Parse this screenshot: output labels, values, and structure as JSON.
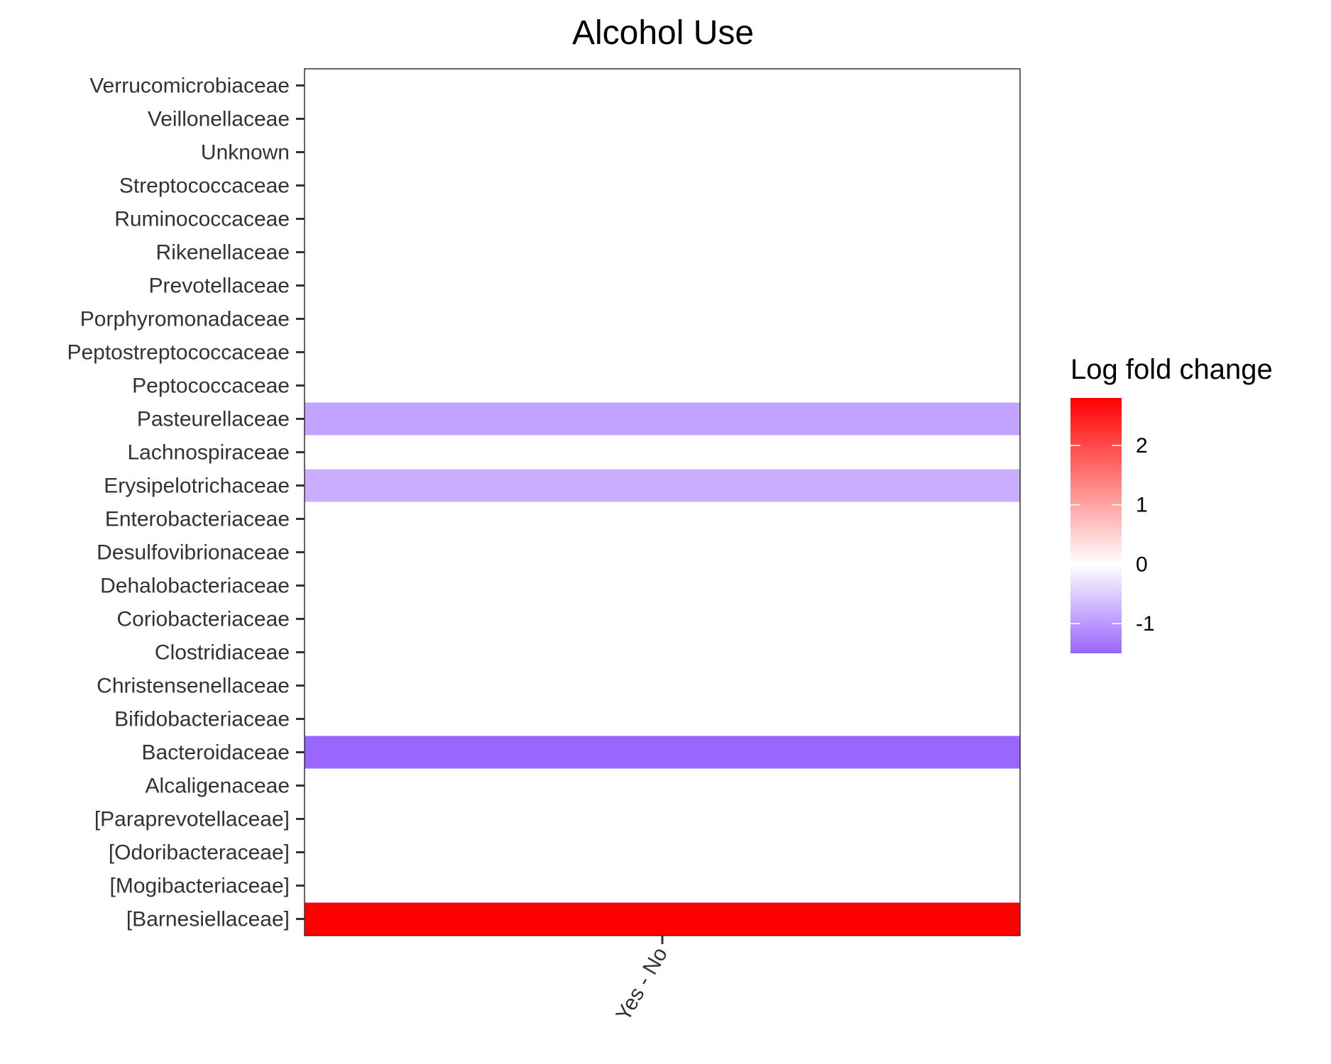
{
  "chart_data": {
    "type": "heatmap",
    "title": "Alcohol Use",
    "x_categories": [
      "Yes - No"
    ],
    "y_categories": [
      "[Barnesiellaceae]",
      "[Mogibacteriaceae]",
      "[Odoribacteraceae]",
      "[Paraprevotellaceae]",
      "Alcaligenaceae",
      "Bacteroidaceae",
      "Bifidobacteriaceae",
      "Christensenellaceae",
      "Clostridiaceae",
      "Coriobacteriaceae",
      "Dehalobacteriaceae",
      "Desulfovibrionaceae",
      "Enterobacteriaceae",
      "Erysipelotrichaceae",
      "Lachnospiraceae",
      "Pasteurellaceae",
      "Peptococcaceae",
      "Peptostreptococcaceae",
      "Porphyromonadaceae",
      "Prevotellaceae",
      "Rikenellaceae",
      "Ruminococcaceae",
      "Streptococcaceae",
      "Unknown",
      "Veillonellaceae",
      "Verrucomicrobiaceae"
    ],
    "cells": [
      {
        "x": "Yes - No",
        "y": "[Barnesiellaceae]",
        "value": 2.8
      },
      {
        "x": "Yes - No",
        "y": "Bacteroidaceae",
        "value": -1.5
      },
      {
        "x": "Yes - No",
        "y": "Erysipelotrichaceae",
        "value": -0.8
      },
      {
        "x": "Yes - No",
        "y": "Pasteurellaceae",
        "value": -0.9
      }
    ],
    "legend": {
      "title": "Log fold change",
      "ticks": [
        2,
        1,
        0,
        -1
      ],
      "range": [
        -1.5,
        2.8
      ],
      "colors": {
        "low": "#9966ff",
        "mid": "#ffffff",
        "high": "#ff0000"
      },
      "position": "right"
    }
  }
}
